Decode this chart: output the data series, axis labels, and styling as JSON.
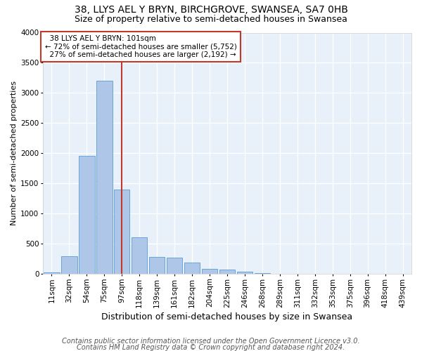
{
  "title_line1": "38, LLYS AEL Y BRYN, BIRCHGROVE, SWANSEA, SA7 0HB",
  "title_line2": "Size of property relative to semi-detached houses in Swansea",
  "xlabel": "Distribution of semi-detached houses by size in Swansea",
  "ylabel": "Number of semi-detached properties",
  "footer_line1": "Contains HM Land Registry data © Crown copyright and database right 2024.",
  "footer_line2": "Contains public sector information licensed under the Open Government Licence v3.0.",
  "bar_labels": [
    "11sqm",
    "32sqm",
    "54sqm",
    "75sqm",
    "97sqm",
    "118sqm",
    "139sqm",
    "161sqm",
    "182sqm",
    "204sqm",
    "225sqm",
    "246sqm",
    "268sqm",
    "289sqm",
    "311sqm",
    "332sqm",
    "353sqm",
    "375sqm",
    "396sqm",
    "418sqm",
    "439sqm"
  ],
  "bar_values": [
    20,
    290,
    1950,
    3200,
    1400,
    600,
    280,
    270,
    190,
    80,
    70,
    30,
    15,
    0,
    0,
    0,
    0,
    0,
    0,
    0,
    0
  ],
  "bar_color": "#aec6e8",
  "bar_edge_color": "#5b9bd5",
  "vline_index": 4,
  "vline_color": "#c0392b",
  "annotation_text": "  38 LLYS AEL Y BRYN: 101sqm  \n← 72% of semi-detached houses are smaller (5,752)\n  27% of semi-detached houses are larger (2,192) →",
  "annotation_box_color": "#ffffff",
  "annotation_box_edge": "#c0392b",
  "ylim": [
    0,
    4000
  ],
  "bg_color": "#e8f0fa",
  "grid_color": "#ffffff",
  "title1_fontsize": 10,
  "title2_fontsize": 9,
  "tick_fontsize": 7.5,
  "ylabel_fontsize": 8,
  "xlabel_fontsize": 9,
  "footer_fontsize": 7
}
